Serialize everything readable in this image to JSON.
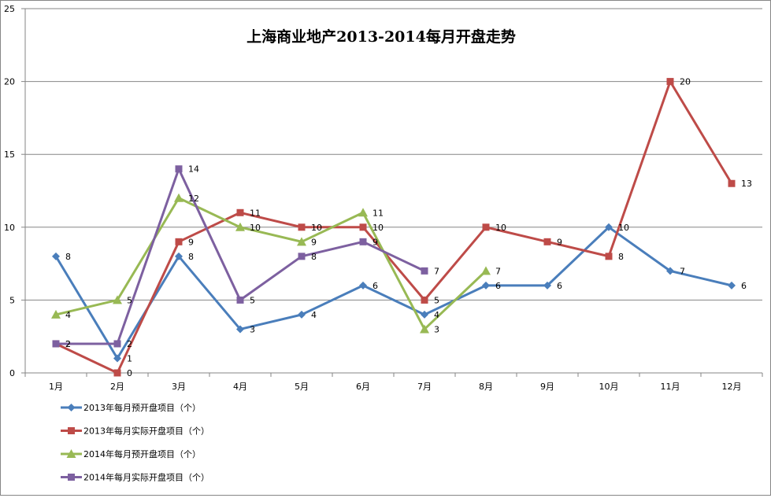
{
  "chart_data": {
    "type": "line",
    "title": "上海商业地产2013-2014每月开盘走势",
    "xlabel": "",
    "ylabel": "",
    "ylim": [
      0,
      25
    ],
    "yticks": [
      0,
      5,
      10,
      15,
      20,
      25
    ],
    "grid": true,
    "legend_position": "bottom-left",
    "categories": [
      "1月",
      "2月",
      "3月",
      "4月",
      "5月",
      "6月",
      "7月",
      "8月",
      "9月",
      "10月",
      "11月",
      "12月"
    ],
    "series": [
      {
        "name": "2013年每月预开盘项目（个）",
        "color": "#4a7ebb",
        "marker": "diamond",
        "values": [
          8,
          1,
          8,
          3,
          4,
          6,
          4,
          6,
          6,
          10,
          7,
          6
        ]
      },
      {
        "name": "2013年每月实际开盘项目（个）",
        "color": "#be4b48",
        "marker": "square",
        "values": [
          2,
          0,
          9,
          11,
          10,
          10,
          5,
          10,
          9,
          8,
          20,
          13
        ]
      },
      {
        "name": "2014年每月预开盘项目（个）",
        "color": "#98b954",
        "marker": "triangle",
        "values": [
          4,
          5,
          12,
          10,
          9,
          11,
          3,
          7,
          null,
          null,
          null,
          null
        ]
      },
      {
        "name": "2014年每月实际开盘项目（个）",
        "color": "#7d60a0",
        "marker": "square",
        "values": [
          2,
          2,
          14,
          5,
          8,
          9,
          7,
          null,
          null,
          null,
          null,
          null
        ]
      }
    ]
  }
}
